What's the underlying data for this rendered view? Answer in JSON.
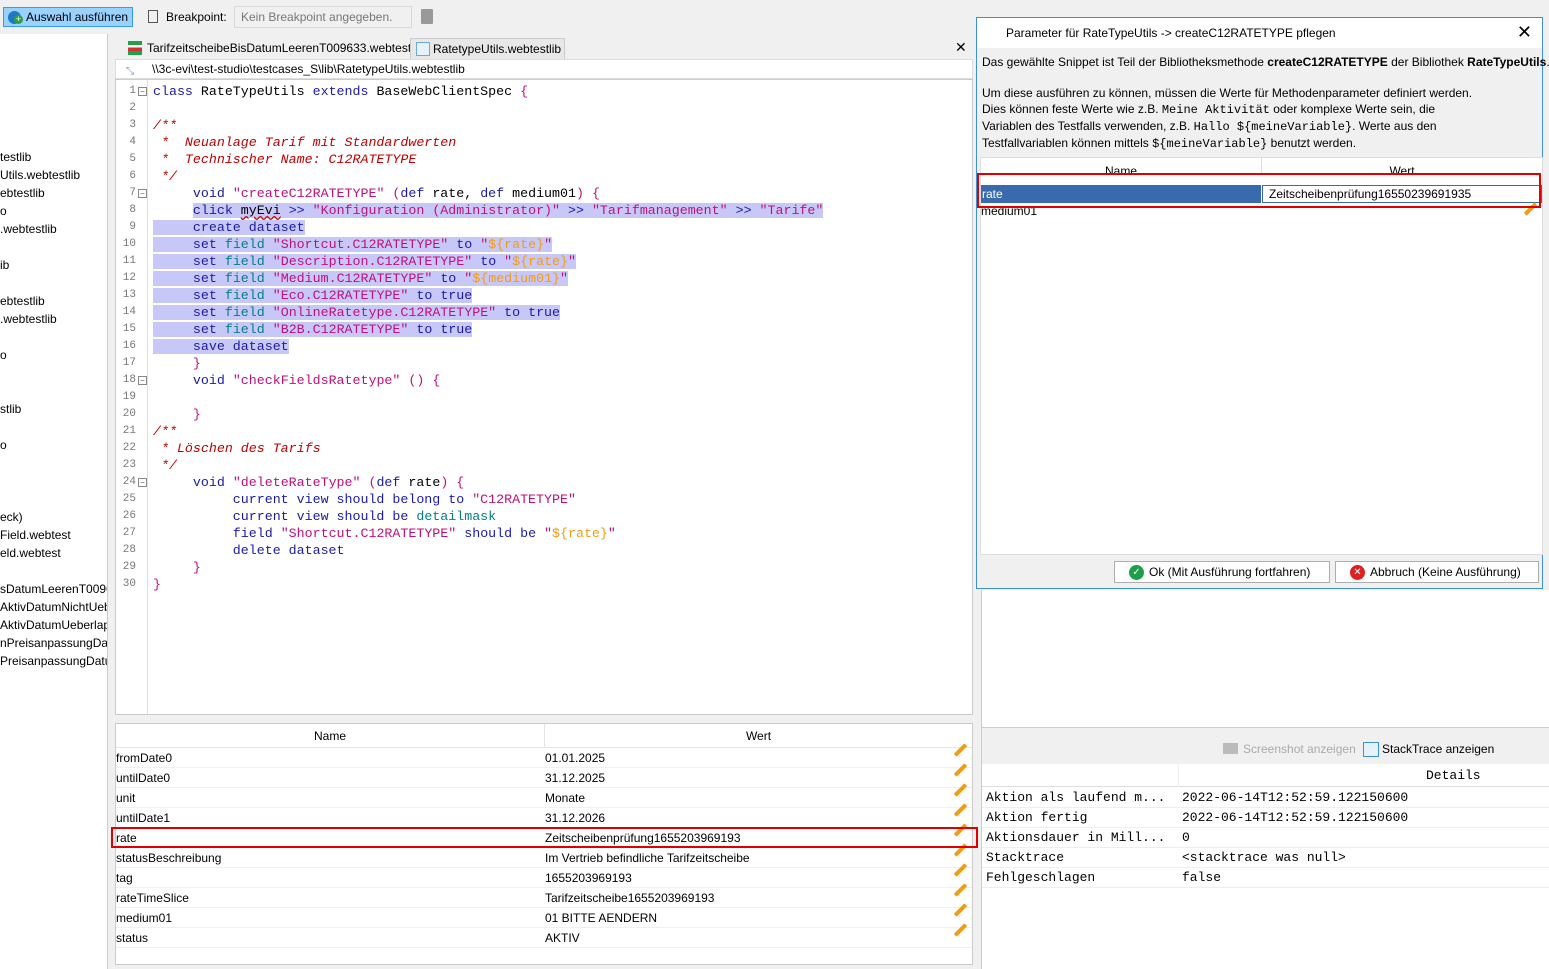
{
  "toolbar": {
    "run_label": "Auswahl ausführen",
    "breakpoint_label": "Breakpoint:",
    "breakpoint_placeholder": "Kein Breakpoint angegeben."
  },
  "tree": [
    "testlib",
    "Utils.webtestlib",
    "ebtestlib",
    "o",
    ".webtestlib",
    "ib",
    "ebtestlib",
    ".webtestlib",
    "o",
    "stlib",
    "o",
    "eck)",
    "Field.webtest",
    "eld.webtest",
    "sDatumLeerenT00963",
    "AktivDatumNichtUeb",
    "AktivDatumUeberlapp",
    "nPreisanpassungDatu",
    "PreisanpassungDatum"
  ],
  "tabs": [
    {
      "label": "TarifzeitscheibeBisDatumLeerenT009633.webtest"
    },
    {
      "label": "RatetypeUtils.webtestlib",
      "active": true
    }
  ],
  "path": "\\\\3c-evi\\test-studio\\testcases_S\\lib\\RatetypeUtils.webtestlib",
  "code": [
    [
      [
        "kw",
        "class"
      ],
      [
        "plain",
        " RateTypeUtils "
      ],
      [
        "kw",
        "extends"
      ],
      [
        "plain",
        " BaseWebClientSpec "
      ],
      [
        "str",
        "{"
      ]
    ],
    [],
    [
      [
        "cmt",
        "/**"
      ]
    ],
    [
      [
        "cmt",
        " *  Neuanlage Tarif mit Standardwerten"
      ]
    ],
    [
      [
        "cmt",
        " *  Technischer Name: C12RATETYPE"
      ]
    ],
    [
      [
        "cmt",
        " */"
      ]
    ],
    [
      [
        "plain",
        "     "
      ],
      [
        "kw",
        "void"
      ],
      [
        "plain",
        " "
      ],
      [
        "str",
        "\"createC12RATETYPE\""
      ],
      [
        "plain",
        " "
      ],
      [
        "str",
        "("
      ],
      [
        "kw",
        "def"
      ],
      [
        "plain",
        " rate, "
      ],
      [
        "kw",
        "def"
      ],
      [
        "plain",
        " medium01"
      ],
      [
        "str",
        ")"
      ],
      [
        "plain",
        " "
      ],
      [
        "str",
        "{"
      ]
    ],
    [
      [
        "plain",
        "     "
      ],
      [
        "kw",
        "click"
      ],
      [
        "plain",
        " "
      ],
      [
        "err",
        "myEvi"
      ],
      [
        "plain",
        " "
      ],
      [
        "kw",
        ">>"
      ],
      [
        "plain",
        " "
      ],
      [
        "str",
        "\"Konfiguration (Administrator)\""
      ],
      [
        "plain",
        " "
      ],
      [
        "kw",
        ">>"
      ],
      [
        "plain",
        " "
      ],
      [
        "str",
        "\"Tarifmanagement\""
      ],
      [
        "plain",
        " "
      ],
      [
        "kw",
        ">>"
      ],
      [
        "plain",
        " "
      ],
      [
        "str",
        "\"Tarife\""
      ]
    ],
    [
      [
        "plain",
        "     "
      ],
      [
        "kw",
        "create dataset"
      ]
    ],
    [
      [
        "plain",
        "     "
      ],
      [
        "kw",
        "set"
      ],
      [
        "plain",
        " "
      ],
      [
        "fld",
        "field"
      ],
      [
        "plain",
        " "
      ],
      [
        "str",
        "\"Shortcut.C12RATETYPE\""
      ],
      [
        "plain",
        " "
      ],
      [
        "kw",
        "to"
      ],
      [
        "plain",
        " "
      ],
      [
        "str",
        "\""
      ],
      [
        "var",
        "${rate}"
      ],
      [
        "str",
        "\""
      ]
    ],
    [
      [
        "plain",
        "     "
      ],
      [
        "kw",
        "set"
      ],
      [
        "plain",
        " "
      ],
      [
        "fld",
        "field"
      ],
      [
        "plain",
        " "
      ],
      [
        "str",
        "\"Description.C12RATETYPE\""
      ],
      [
        "plain",
        " "
      ],
      [
        "kw",
        "to"
      ],
      [
        "plain",
        " "
      ],
      [
        "str",
        "\""
      ],
      [
        "var",
        "${rate}"
      ],
      [
        "str",
        "\""
      ]
    ],
    [
      [
        "plain",
        "     "
      ],
      [
        "kw",
        "set"
      ],
      [
        "plain",
        " "
      ],
      [
        "fld",
        "field"
      ],
      [
        "plain",
        " "
      ],
      [
        "str",
        "\"Medium.C12RATETYPE\""
      ],
      [
        "plain",
        " "
      ],
      [
        "kw",
        "to"
      ],
      [
        "plain",
        " "
      ],
      [
        "str",
        "\""
      ],
      [
        "var",
        "${medium01}"
      ],
      [
        "str",
        "\""
      ]
    ],
    [
      [
        "plain",
        "     "
      ],
      [
        "kw",
        "set"
      ],
      [
        "plain",
        " "
      ],
      [
        "fld",
        "field"
      ],
      [
        "plain",
        " "
      ],
      [
        "str",
        "\"Eco.C12RATETYPE\""
      ],
      [
        "plain",
        " "
      ],
      [
        "kw",
        "to true"
      ]
    ],
    [
      [
        "plain",
        "     "
      ],
      [
        "kw",
        "set"
      ],
      [
        "plain",
        " "
      ],
      [
        "fld",
        "field"
      ],
      [
        "plain",
        " "
      ],
      [
        "str",
        "\"OnlineRatetype.C12RATETYPE\""
      ],
      [
        "plain",
        " "
      ],
      [
        "kw",
        "to true"
      ]
    ],
    [
      [
        "plain",
        "     "
      ],
      [
        "kw",
        "set"
      ],
      [
        "plain",
        " "
      ],
      [
        "fld",
        "field"
      ],
      [
        "plain",
        " "
      ],
      [
        "str",
        "\"B2B.C12RATETYPE\""
      ],
      [
        "plain",
        " "
      ],
      [
        "kw",
        "to true"
      ]
    ],
    [
      [
        "plain",
        "     "
      ],
      [
        "kw",
        "save dataset"
      ]
    ],
    [
      [
        "plain",
        "     "
      ],
      [
        "str",
        "}"
      ]
    ],
    [
      [
        "plain",
        "     "
      ],
      [
        "kw",
        "void"
      ],
      [
        "plain",
        " "
      ],
      [
        "str",
        "\"checkFieldsRatetype\""
      ],
      [
        "plain",
        " "
      ],
      [
        "str",
        "()"
      ],
      [
        "plain",
        " "
      ],
      [
        "str",
        "{"
      ]
    ],
    [],
    [
      [
        "plain",
        "     "
      ],
      [
        "str",
        "}"
      ]
    ],
    [
      [
        "cmt",
        "/**"
      ]
    ],
    [
      [
        "cmt",
        " * Löschen des Tarifs"
      ]
    ],
    [
      [
        "cmt",
        " */"
      ]
    ],
    [
      [
        "plain",
        "     "
      ],
      [
        "kw",
        "void"
      ],
      [
        "plain",
        " "
      ],
      [
        "str",
        "\"deleteRateType\""
      ],
      [
        "plain",
        " "
      ],
      [
        "str",
        "("
      ],
      [
        "kw",
        "def"
      ],
      [
        "plain",
        " rate"
      ],
      [
        "str",
        ")"
      ],
      [
        "plain",
        " "
      ],
      [
        "str",
        "{"
      ]
    ],
    [
      [
        "plain",
        "          "
      ],
      [
        "kw",
        "current view should belong to"
      ],
      [
        "plain",
        " "
      ],
      [
        "str",
        "\"C12RATETYPE\""
      ]
    ],
    [
      [
        "plain",
        "          "
      ],
      [
        "kw",
        "current view should be"
      ],
      [
        "plain",
        " "
      ],
      [
        "fld",
        "detailmask"
      ]
    ],
    [
      [
        "plain",
        "          "
      ],
      [
        "kw",
        "field"
      ],
      [
        "plain",
        " "
      ],
      [
        "str",
        "\"Shortcut.C12RATETYPE\""
      ],
      [
        "plain",
        " "
      ],
      [
        "kw",
        "should be"
      ],
      [
        "plain",
        " "
      ],
      [
        "str",
        "\""
      ],
      [
        "var",
        "${rate}"
      ],
      [
        "str",
        "\""
      ]
    ],
    [
      [
        "plain",
        "          "
      ],
      [
        "kw",
        "delete dataset"
      ]
    ],
    [
      [
        "plain",
        "     "
      ],
      [
        "str",
        "}"
      ]
    ],
    [
      [
        "str",
        "}"
      ]
    ]
  ],
  "variables": {
    "headers": {
      "name": "Name",
      "value": "Wert"
    },
    "rows": [
      {
        "name": "fromDate0",
        "value": "01.01.2025"
      },
      {
        "name": "untilDate0",
        "value": "31.12.2025"
      },
      {
        "name": "unit",
        "value": "Monate"
      },
      {
        "name": "untilDate1",
        "value": "31.12.2026"
      },
      {
        "name": "rate",
        "value": "Zeitscheibenprüfung1655203969193",
        "highlighted": true
      },
      {
        "name": "statusBeschreibung",
        "value": "Im Vertrieb befindliche Tarifzeitscheibe"
      },
      {
        "name": "tag",
        "value": "1655203969193"
      },
      {
        "name": "rateTimeSlice",
        "value": "Tarifzeitscheibe1655203969193"
      },
      {
        "name": "medium01",
        "value": "01 BITTE AENDERN"
      },
      {
        "name": "status",
        "value": "AKTIV"
      }
    ]
  },
  "dialog": {
    "title": "Parameter für RateTypeUtils -> createC12RATETYPE pflegen",
    "intro_pre": "Das gewählte Snippet ist Teil der Bibliotheksmethode ",
    "intro_method": "createC12RATETYPE",
    "intro_mid": " der Bibliothek ",
    "intro_lib": "RateTypeUtils",
    "intro_post": ".",
    "p1": "Um diese ausführen zu können, müssen die Werte für Methodenparameter definiert werden.",
    "p2a": "Dies können feste Werte wie z.B. ",
    "p2code": "Meine Aktivität",
    "p2b": " oder komplexe Werte sein, die",
    "p3a": "Variablen des Testfalls verwenden, z.B. ",
    "p3code": "Hallo ${meineVariable}",
    "p3b": ". Werte aus den",
    "p4a": "Testfallvariablen können mittels ",
    "p4code": "${meineVariable}",
    "p4b": " benutzt werden.",
    "table": {
      "name_header": "Name",
      "value_header": "Wert",
      "rows": [
        {
          "name": "rate",
          "value": "Zeitscheibenprüfung16550239691935"
        },
        {
          "name": "medium01",
          "value": ""
        }
      ]
    },
    "ok_label": "Ok (Mit Ausführung fortfahren)",
    "cancel_label": "Abbruch (Keine Ausführung)"
  },
  "result_panel": {
    "screenshot_label": "Screenshot anzeigen",
    "stacktrace_label": "StackTrace anzeigen",
    "details_header": "Details",
    "rows": [
      {
        "key": "Aktion als laufend m...",
        "value": "2022-06-14T12:52:59.122150600"
      },
      {
        "key": "Aktion fertig",
        "value": "2022-06-14T12:52:59.122150600"
      },
      {
        "key": "Aktionsdauer in Mill...",
        "value": "0"
      },
      {
        "key": "Stacktrace",
        "value": "<stacktrace was null>"
      },
      {
        "key": "Fehlgeschlagen",
        "value": "false"
      }
    ]
  }
}
